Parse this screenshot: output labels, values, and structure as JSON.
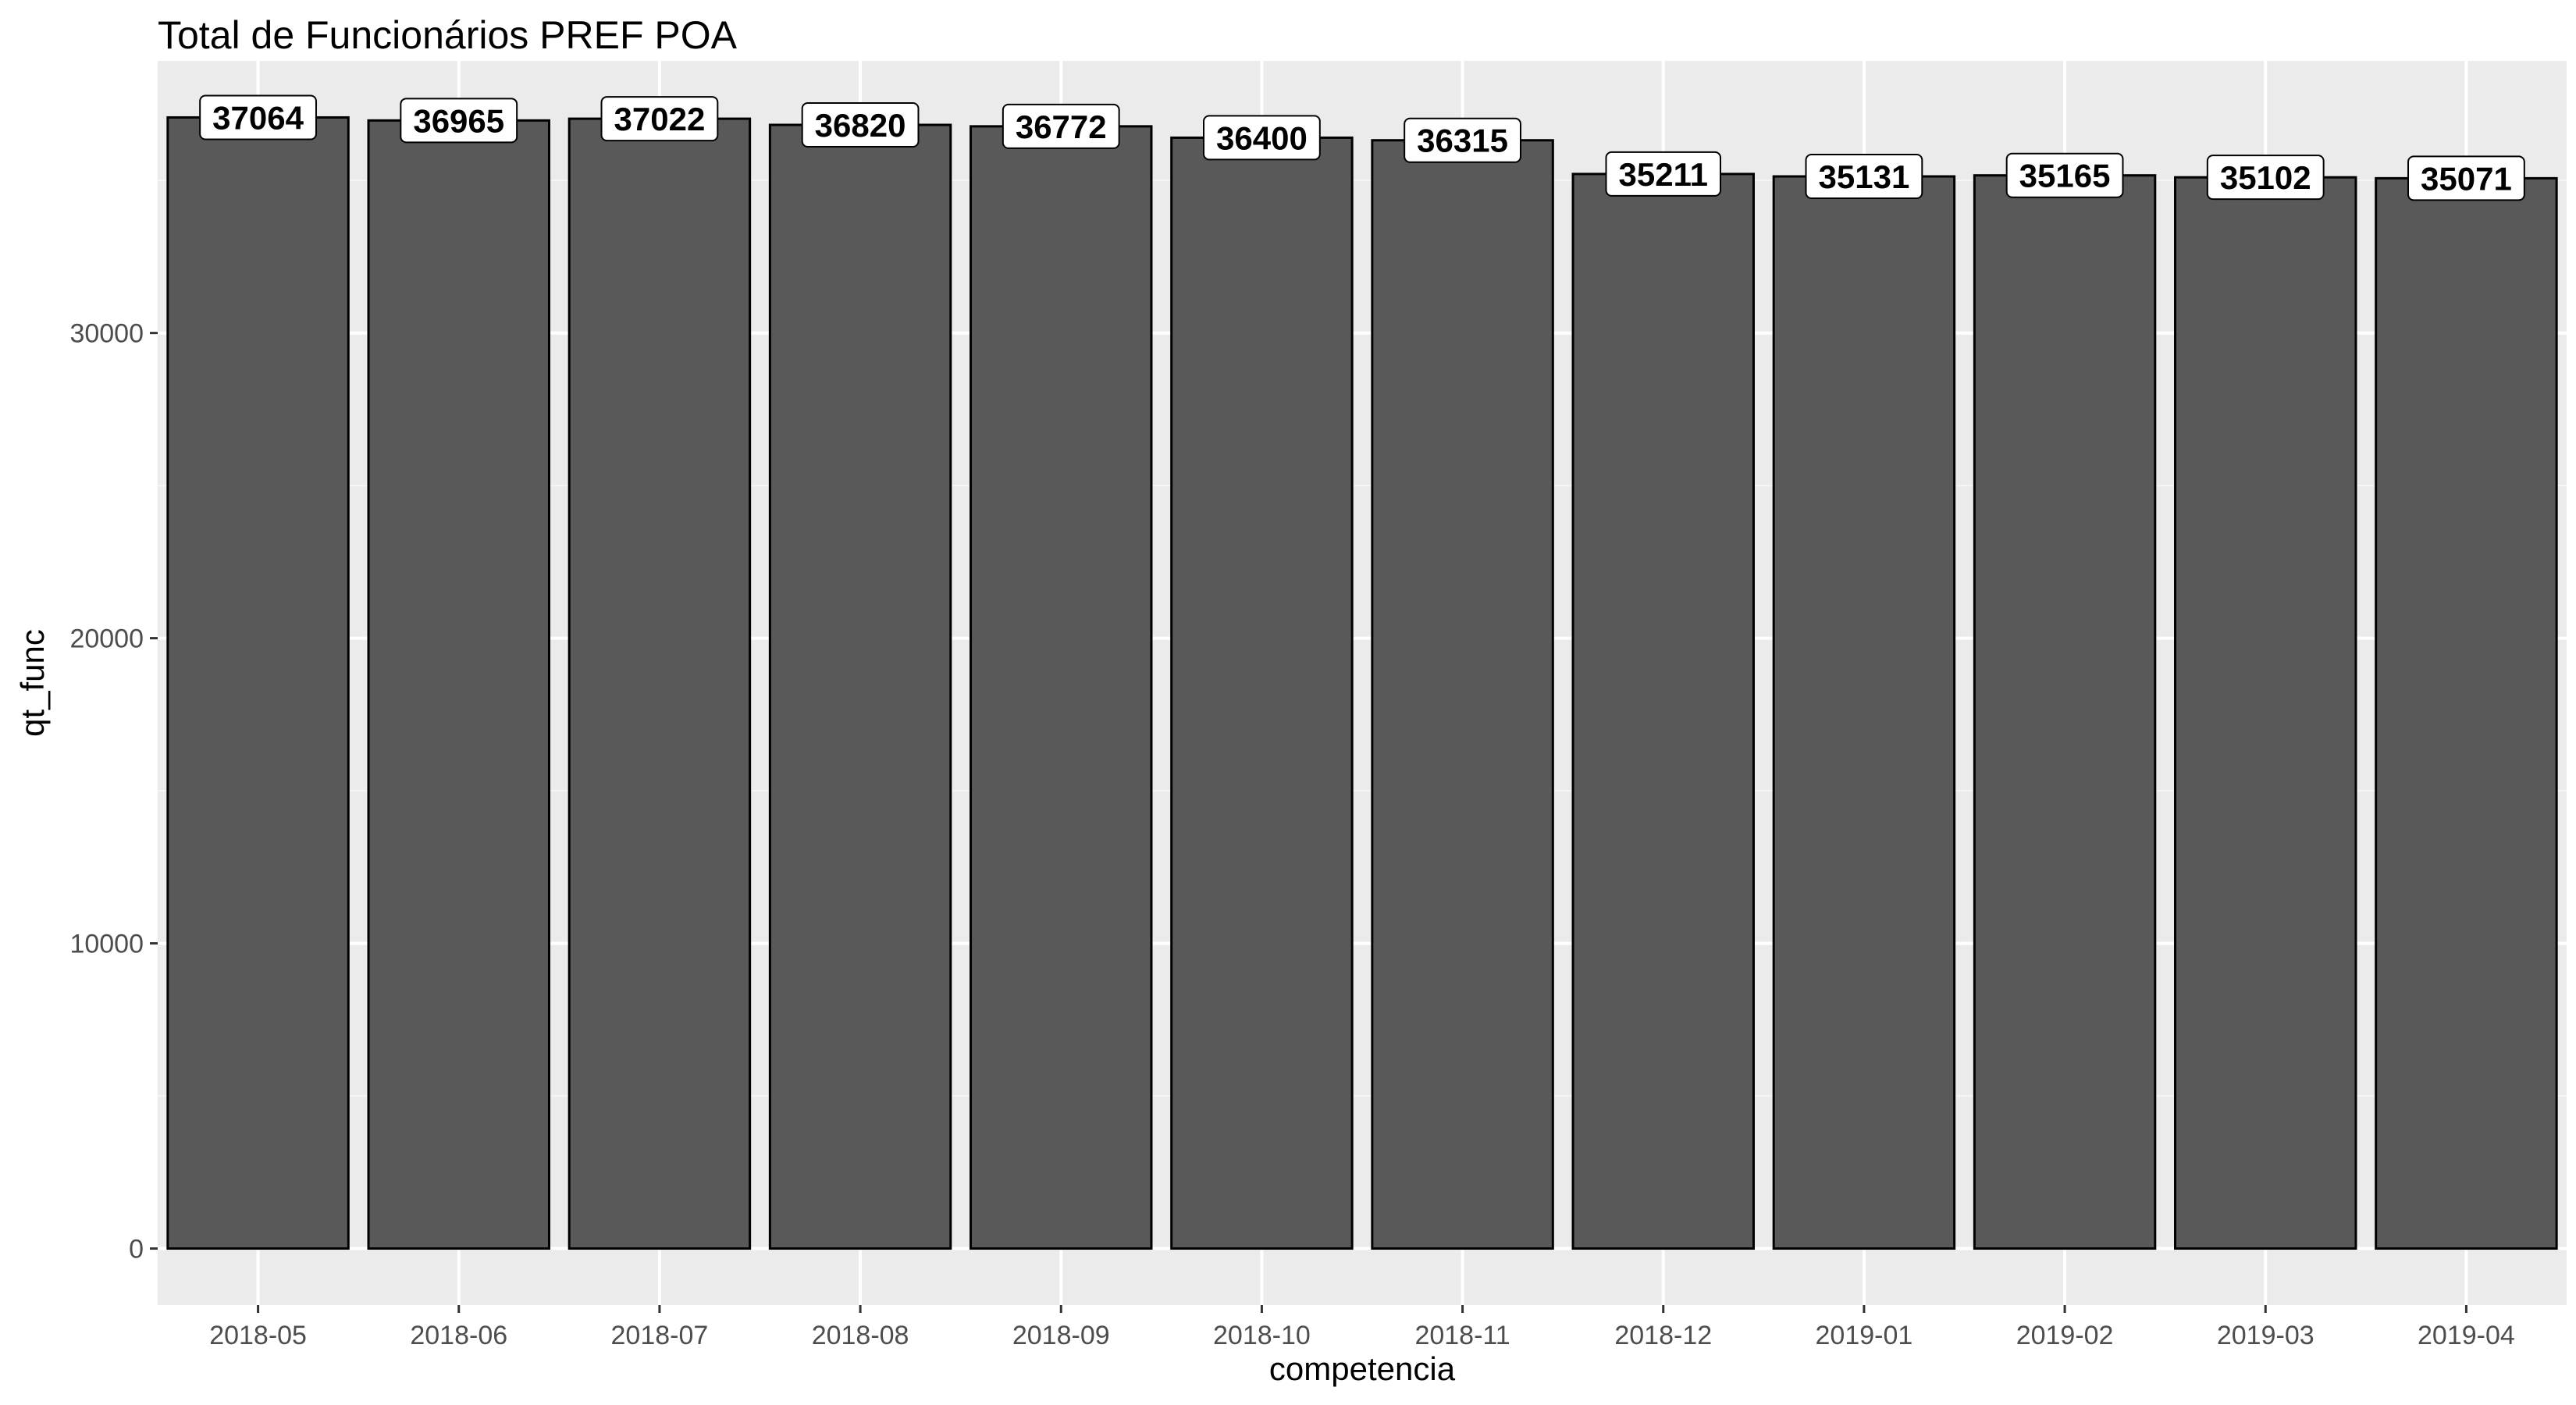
{
  "chart_data": {
    "type": "bar",
    "title": "Total de Funcionários PREF POA",
    "xlabel": "competencia",
    "ylabel": "qt_func",
    "categories": [
      "2018-05",
      "2018-06",
      "2018-07",
      "2018-08",
      "2018-09",
      "2018-10",
      "2018-11",
      "2018-12",
      "2019-01",
      "2019-02",
      "2019-03",
      "2019-04"
    ],
    "values": [
      37064,
      36965,
      37022,
      36820,
      36772,
      36400,
      36315,
      35211,
      35131,
      35165,
      35102,
      35071
    ],
    "data_labels": [
      "37064",
      "36965",
      "37022",
      "36820",
      "36772",
      "36400",
      "36315",
      "35211",
      "35131",
      "35165",
      "35102",
      "35071"
    ],
    "y_ticks": [
      0,
      10000,
      20000,
      30000
    ],
    "y_tick_labels": [
      "0",
      "10000",
      "20000",
      "30000"
    ],
    "ylim": [
      -1853,
      38917
    ],
    "grid": true,
    "legend": "none",
    "colors": {
      "panel_background": "#ebebeb",
      "grid_major": "#ffffff",
      "grid_minor": "#f5f5f5",
      "bar_fill": "#595959",
      "bar_outline": "#000000",
      "label_background": "#ffffff",
      "tick_label": "#4d4d4d",
      "text": "#000000"
    }
  }
}
